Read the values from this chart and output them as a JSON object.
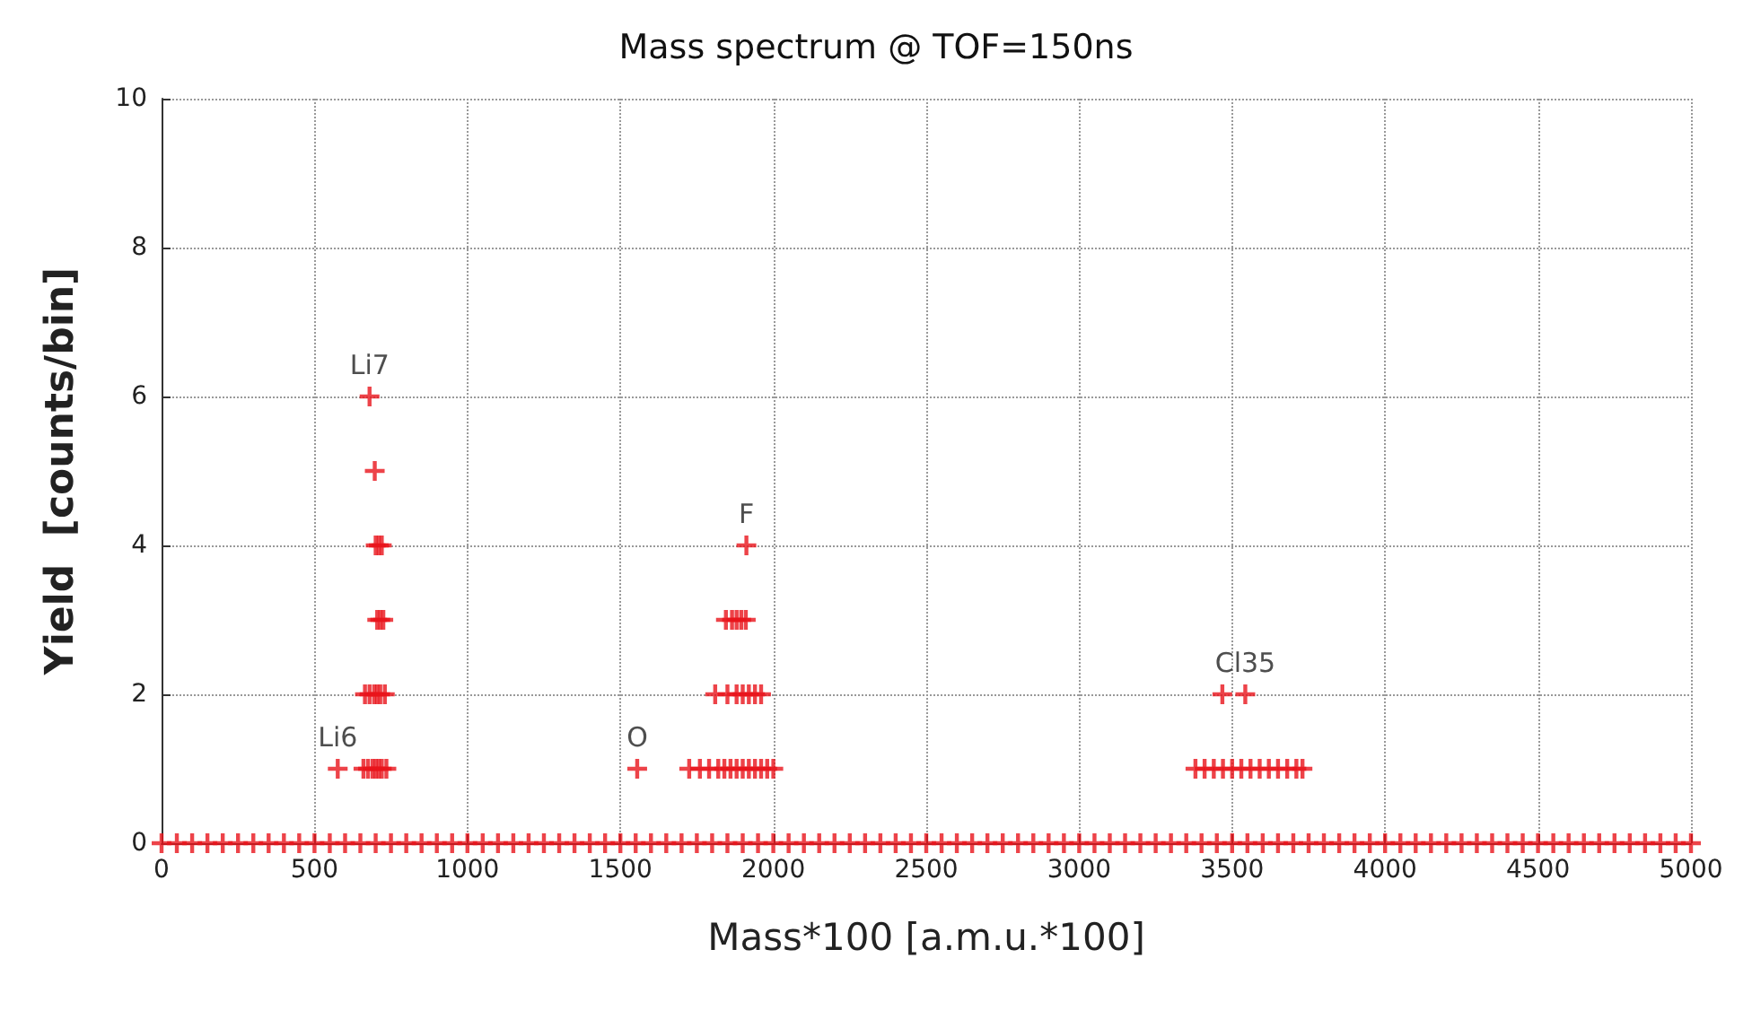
{
  "chart_data": {
    "type": "scatter",
    "title": "Mass spectrum @ TOF=150ns",
    "xlabel": "Mass*100 [a.m.u.*100]",
    "ylabel": "Yield  [counts/bin]",
    "xlim": [
      0,
      5000
    ],
    "xticks": [
      0,
      500,
      1000,
      1500,
      2000,
      2500,
      3000,
      3500,
      4000,
      4500,
      5000
    ],
    "ylim": [
      0,
      10
    ],
    "yticks": [
      0,
      2,
      4,
      6,
      8,
      10
    ],
    "grid": true,
    "marker": "cross",
    "line_style": "dotted",
    "series": [
      {
        "color": "#e8141b",
        "x": [
          680,
          697,
          700,
          710,
          720,
          705,
          715,
          725,
          665,
          680,
          695,
          705,
          715,
          730,
          576,
          660,
          675,
          690,
          700,
          710,
          720,
          735,
          1912,
          1845,
          1865,
          1880,
          1895,
          1910,
          1810,
          1850,
          1880,
          1900,
          1920,
          1940,
          1960,
          1555,
          1725,
          1760,
          1790,
          1820,
          1840,
          1860,
          1880,
          1900,
          1920,
          1940,
          1960,
          1980,
          2000,
          3468,
          3543,
          3380,
          3410,
          3440,
          3470,
          3500,
          3530,
          3560,
          3590,
          3620,
          3650,
          3680,
          3710,
          3730
        ],
        "values": [
          6,
          5,
          4,
          4,
          4,
          3,
          3,
          3,
          2,
          2,
          2,
          2,
          2,
          2,
          1,
          1,
          1,
          1,
          1,
          1,
          1,
          1,
          4,
          3,
          3,
          3,
          3,
          3,
          2,
          2,
          2,
          2,
          2,
          2,
          2,
          1,
          1,
          1,
          1,
          1,
          1,
          1,
          1,
          1,
          1,
          1,
          1,
          1,
          1,
          2,
          2,
          1,
          1,
          1,
          1,
          1,
          1,
          1,
          1,
          1,
          1,
          1,
          1,
          1
        ]
      },
      {
        "color": "#e8141b",
        "x": [
          0,
          50,
          100,
          150,
          200,
          250,
          300,
          350,
          400,
          450,
          500,
          550,
          600,
          650,
          700,
          750,
          800,
          850,
          900,
          950,
          1000,
          1050,
          1100,
          1150,
          1200,
          1250,
          1300,
          1350,
          1400,
          1450,
          1500,
          1550,
          1600,
          1650,
          1700,
          1750,
          1800,
          1850,
          1900,
          1950,
          2000,
          2050,
          2100,
          2150,
          2200,
          2250,
          2300,
          2350,
          2400,
          2450,
          2500,
          2550,
          2600,
          2650,
          2700,
          2750,
          2800,
          2850,
          2900,
          2950,
          3000,
          3050,
          3100,
          3150,
          3200,
          3250,
          3300,
          3350,
          3400,
          3450,
          3500,
          3550,
          3600,
          3650,
          3700,
          3750,
          3800,
          3850,
          3900,
          3950,
          4000,
          4050,
          4100,
          4150,
          4200,
          4250,
          4300,
          4350,
          4400,
          4450,
          4500,
          4550,
          4600,
          4650,
          4700,
          4750,
          4800,
          4850,
          4900,
          4950,
          5000
        ],
        "values": [
          0,
          0,
          0,
          0,
          0,
          0,
          0,
          0,
          0,
          0,
          0,
          0,
          0,
          0,
          0,
          0,
          0,
          0,
          0,
          0,
          0,
          0,
          0,
          0,
          0,
          0,
          0,
          0,
          0,
          0,
          0,
          0,
          0,
          0,
          0,
          0,
          0,
          0,
          0,
          0,
          0,
          0,
          0,
          0,
          0,
          0,
          0,
          0,
          0,
          0,
          0,
          0,
          0,
          0,
          0,
          0,
          0,
          0,
          0,
          0,
          0,
          0,
          0,
          0,
          0,
          0,
          0,
          0,
          0,
          0,
          0,
          0,
          0,
          0,
          0,
          0,
          0,
          0,
          0,
          0,
          0,
          0,
          0,
          0,
          0,
          0,
          0,
          0,
          0,
          0,
          0,
          0,
          0,
          0,
          0,
          0,
          0,
          0,
          0,
          0,
          0
        ]
      }
    ],
    "annotations": [
      {
        "text": "Li7",
        "x": 680,
        "y": 6
      },
      {
        "text": "Li6",
        "x": 576,
        "y": 1
      },
      {
        "text": "O",
        "x": 1555,
        "y": 1
      },
      {
        "text": "F",
        "x": 1912,
        "y": 4
      },
      {
        "text": "Cl35",
        "x": 3543,
        "y": 2
      }
    ]
  }
}
